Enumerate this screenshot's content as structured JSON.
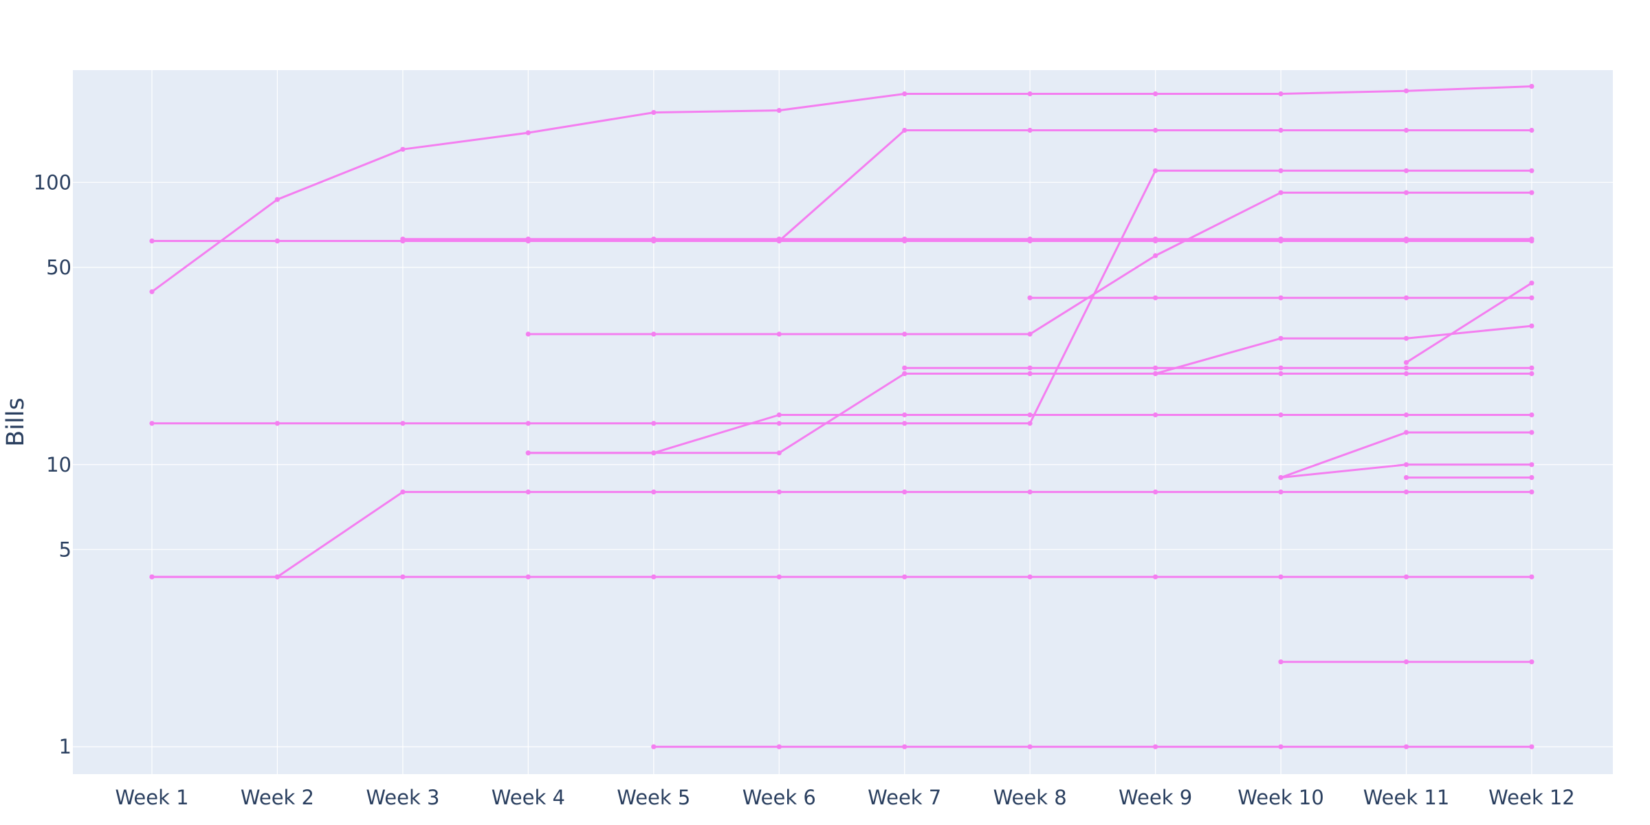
{
  "chart_data": {
    "type": "line",
    "title": "",
    "xlabel": "",
    "ylabel": "Bills",
    "y_scale": "log",
    "ylim": [
      0.8,
      250
    ],
    "grid": true,
    "legend": "none",
    "colors": {
      "series": "#f47ef0",
      "plot_bg": "#e5ecf6",
      "grid": "#ffffff",
      "text": "#2a3f5f"
    },
    "categories": [
      "Week 1",
      "Week 2",
      "Week 3",
      "Week 4",
      "Week 5",
      "Week 6",
      "Week 7",
      "Week 8",
      "Week 9",
      "Week 10",
      "Week 11",
      "Week 12"
    ],
    "y_ticks": [
      {
        "value": 1,
        "label": "1"
      },
      {
        "value": 5,
        "label": "5"
      },
      {
        "value": 10,
        "label": "10"
      },
      {
        "value": 50,
        "label": "50"
      },
      {
        "value": 100,
        "label": "100"
      }
    ],
    "series": [
      {
        "values": [
          41,
          87,
          131,
          150,
          177,
          180,
          206,
          206,
          206,
          206,
          211,
          219
        ]
      },
      {
        "values": [
          62,
          62,
          62,
          62,
          62,
          62,
          153,
          153,
          153,
          153,
          153,
          153
        ]
      },
      {
        "values": [
          62,
          62,
          62,
          62,
          62,
          62,
          62,
          62,
          62,
          62,
          62,
          62
        ]
      },
      {
        "values": [
          null,
          null,
          63,
          63,
          63,
          63,
          63,
          63,
          63,
          63,
          63,
          63
        ]
      },
      {
        "values": [
          14,
          14,
          14,
          14,
          14,
          14,
          14,
          14,
          110,
          110,
          110,
          110
        ]
      },
      {
        "values": [
          null,
          null,
          null,
          29,
          29,
          29,
          29,
          29,
          55,
          92,
          92,
          92
        ]
      },
      {
        "values": [
          null,
          null,
          null,
          null,
          null,
          null,
          null,
          39,
          39,
          39,
          39,
          39
        ]
      },
      {
        "values": [
          null,
          null,
          null,
          null,
          null,
          null,
          null,
          null,
          null,
          null,
          23,
          44
        ]
      },
      {
        "values": [
          null,
          null,
          null,
          null,
          null,
          null,
          21,
          21,
          21,
          28,
          28,
          31
        ]
      },
      {
        "values": [
          null,
          null,
          null,
          null,
          null,
          null,
          22,
          22,
          22,
          22,
          22,
          22
        ]
      },
      {
        "values": [
          null,
          null,
          null,
          11,
          11,
          11,
          21,
          21,
          21,
          21,
          21,
          21
        ]
      },
      {
        "values": [
          null,
          null,
          null,
          11,
          11,
          15,
          15,
          15,
          15,
          15,
          15,
          15
        ]
      },
      {
        "values": [
          null,
          null,
          null,
          null,
          null,
          null,
          null,
          null,
          null,
          9,
          13,
          13
        ]
      },
      {
        "values": [
          null,
          null,
          null,
          null,
          null,
          null,
          null,
          null,
          null,
          9,
          10,
          10
        ]
      },
      {
        "values": [
          null,
          null,
          null,
          null,
          null,
          null,
          null,
          null,
          null,
          null,
          9,
          9
        ]
      },
      {
        "values": [
          4,
          4,
          8,
          8,
          8,
          8,
          8,
          8,
          8,
          8,
          8,
          8
        ]
      },
      {
        "values": [
          4,
          4,
          4,
          4,
          4,
          4,
          4,
          4,
          4,
          4,
          4,
          4
        ]
      },
      {
        "values": [
          null,
          null,
          null,
          null,
          null,
          null,
          null,
          null,
          null,
          2,
          2,
          2
        ]
      },
      {
        "values": [
          null,
          null,
          null,
          null,
          1,
          1,
          1,
          1,
          1,
          1,
          1,
          1
        ]
      }
    ]
  }
}
